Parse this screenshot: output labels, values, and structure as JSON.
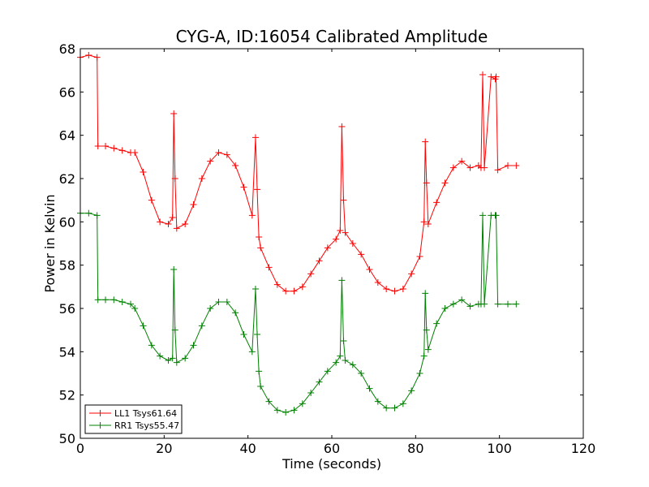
{
  "chart_data": {
    "type": "line",
    "title": "CYG-A, ID:16054 Calibrated Amplitude",
    "xlabel": "Time (seconds)",
    "ylabel": "Power in Kelvin",
    "xlim": [
      0,
      120
    ],
    "ylim": [
      50,
      68
    ],
    "xticks": [
      "0",
      "20",
      "40",
      "60",
      "80",
      "100",
      "120"
    ],
    "yticks": [
      "50",
      "52",
      "54",
      "56",
      "58",
      "60",
      "62",
      "64",
      "66",
      "68"
    ],
    "grid": false,
    "legend_position": "lower-left",
    "marker": "+",
    "series": [
      {
        "name": "LL1 Tsys61.64",
        "color": "#ff0000",
        "x": [
          0,
          2,
          4,
          4.2,
          6,
          8,
          10,
          12,
          13,
          15,
          17,
          19,
          21,
          22,
          22.3,
          22.6,
          23,
          25,
          27,
          29,
          31,
          33,
          35,
          37,
          39,
          41,
          41.8,
          42.2,
          42.6,
          43,
          45,
          47,
          49,
          51,
          53,
          55,
          57,
          59,
          61,
          62,
          62.4,
          62.8,
          63.2,
          65,
          67,
          69,
          71,
          73,
          75,
          77,
          79,
          81,
          82,
          82.3,
          82.6,
          83,
          85,
          87,
          89,
          91,
          93,
          95,
          95.6,
          96,
          96.4,
          98,
          99,
          99.2,
          99.6,
          102,
          104
        ],
        "values": [
          67.6,
          67.7,
          67.6,
          63.5,
          63.5,
          63.4,
          63.3,
          63.2,
          63.2,
          62.3,
          61.0,
          60.0,
          59.9,
          60.2,
          65.0,
          62.0,
          59.7,
          59.9,
          60.8,
          62.0,
          62.8,
          63.2,
          63.1,
          62.6,
          61.6,
          60.3,
          63.9,
          61.5,
          59.3,
          58.8,
          57.9,
          57.1,
          56.8,
          56.8,
          57.0,
          57.6,
          58.2,
          58.8,
          59.2,
          59.6,
          64.4,
          61.0,
          59.5,
          59.0,
          58.5,
          57.8,
          57.2,
          56.9,
          56.8,
          56.9,
          57.6,
          58.4,
          60.0,
          63.7,
          61.8,
          59.9,
          60.9,
          61.8,
          62.5,
          62.8,
          62.5,
          62.6,
          62.5,
          66.8,
          62.5,
          66.7,
          66.6,
          66.7,
          62.4,
          62.6,
          62.6
        ]
      },
      {
        "name": "RR1 Tsys55.47",
        "color": "#008000",
        "x": [
          0,
          2,
          4,
          4.2,
          6,
          8,
          10,
          12,
          13,
          15,
          17,
          19,
          21,
          22,
          22.3,
          22.6,
          23,
          25,
          27,
          29,
          31,
          33,
          35,
          37,
          39,
          41,
          41.8,
          42.2,
          42.6,
          43,
          45,
          47,
          49,
          51,
          53,
          55,
          57,
          59,
          61,
          62,
          62.4,
          62.8,
          63.2,
          65,
          67,
          69,
          71,
          73,
          75,
          77,
          79,
          81,
          82,
          82.3,
          82.6,
          83,
          85,
          87,
          89,
          91,
          93,
          95,
          95.6,
          96,
          96.4,
          98,
          99,
          99.2,
          99.6,
          102,
          104
        ],
        "values": [
          60.4,
          60.4,
          60.3,
          56.4,
          56.4,
          56.4,
          56.3,
          56.2,
          56.0,
          55.2,
          54.3,
          53.8,
          53.6,
          53.7,
          57.8,
          55.0,
          53.5,
          53.7,
          54.3,
          55.2,
          56.0,
          56.3,
          56.3,
          55.8,
          54.8,
          54.0,
          56.9,
          54.8,
          53.1,
          52.4,
          51.7,
          51.3,
          51.2,
          51.3,
          51.6,
          52.1,
          52.6,
          53.1,
          53.5,
          53.8,
          57.3,
          54.5,
          53.6,
          53.4,
          53.0,
          52.3,
          51.7,
          51.4,
          51.4,
          51.6,
          52.2,
          53.0,
          53.8,
          56.7,
          55.0,
          54.1,
          55.3,
          56.0,
          56.2,
          56.4,
          56.1,
          56.2,
          56.2,
          60.3,
          56.2,
          60.3,
          60.3,
          60.3,
          56.2,
          56.2,
          56.2
        ]
      }
    ]
  }
}
